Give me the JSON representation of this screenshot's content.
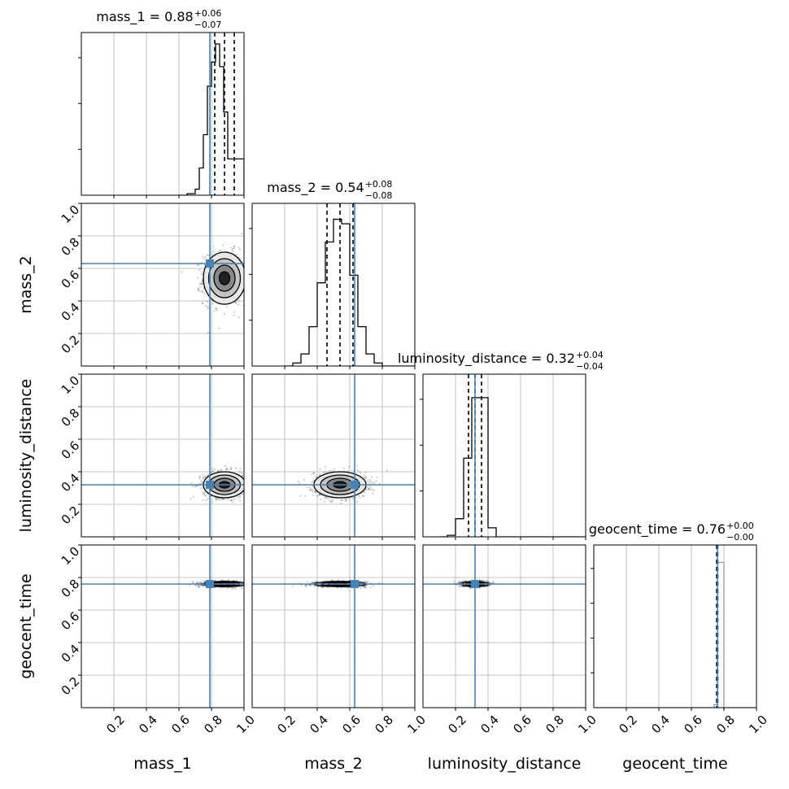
{
  "truth_color": "#4682b4",
  "chart_data": {
    "type": "corner",
    "parameters": [
      "mass_1",
      "mass_2",
      "luminosity_distance",
      "geocent_time"
    ],
    "axis_labels": [
      "mass_1",
      "mass_2",
      "luminosity_distance",
      "geocent_time"
    ],
    "range": [
      0,
      1
    ],
    "ticks": [
      0.2,
      0.4,
      0.6,
      0.8,
      1.0
    ],
    "tick_labels": [
      "0.2",
      "0.4",
      "0.6",
      "0.8",
      "1.0"
    ],
    "grid": true,
    "truths": [
      0.79,
      0.63,
      0.32,
      0.76
    ],
    "titles": [
      {
        "name": "mass_1",
        "eq": " = ",
        "value": "0.88",
        "plus": "+0.06",
        "minus": "−0.07"
      },
      {
        "name": "mass_2",
        "eq": " = ",
        "value": "0.54",
        "plus": "+0.08",
        "minus": "−0.08"
      },
      {
        "name": "luminosity_distance",
        "eq": " = ",
        "value": "0.32",
        "plus": "+0.04",
        "minus": "−0.04"
      },
      {
        "name": "geocent_time",
        "eq": " = ",
        "value": "0.76",
        "plus": "+0.00",
        "minus": "−0.00"
      }
    ],
    "quantiles": [
      [
        0.82,
        0.88,
        0.94
      ],
      [
        0.46,
        0.54,
        0.62
      ],
      [
        0.28,
        0.32,
        0.36
      ],
      [
        0.755,
        0.76,
        0.762
      ]
    ],
    "histograms": [
      {
        "edges": [
          0.6,
          0.65,
          0.7,
          0.725,
          0.75,
          0.775,
          0.8,
          0.825,
          0.85,
          0.875,
          0.9,
          0.925,
          0.95,
          0.975,
          1.0
        ],
        "counts": [
          0.0,
          0.01,
          0.04,
          0.18,
          0.4,
          0.72,
          0.88,
          1.0,
          0.85,
          0.55,
          0.24,
          0.24,
          0.24,
          0.24
        ]
      },
      {
        "edges": [
          0.2,
          0.25,
          0.3,
          0.35,
          0.4,
          0.45,
          0.5,
          0.55,
          0.6,
          0.65,
          0.7,
          0.75,
          0.8,
          0.85,
          1.0
        ],
        "counts": [
          0.0,
          0.02,
          0.08,
          0.26,
          0.55,
          0.82,
          0.97,
          0.94,
          0.6,
          0.26,
          0.08,
          0.02,
          0.0,
          0.0
        ]
      },
      {
        "edges": [
          0.1,
          0.15,
          0.2,
          0.25,
          0.3,
          0.35,
          0.4,
          0.45,
          0.5,
          1.0
        ],
        "counts": [
          0.0,
          0.01,
          0.12,
          0.52,
          0.92,
          0.92,
          0.06,
          0.0,
          0.0
        ]
      },
      {
        "edges": [
          0.0,
          0.74,
          0.76,
          0.8,
          1.0
        ],
        "counts": [
          0.0,
          0.02,
          0.97,
          0.0
        ]
      }
    ],
    "scatter_2d": [
      {
        "row": 1,
        "col": 0,
        "cx": 0.88,
        "cy": 0.54,
        "sx": 0.065,
        "sy": 0.08
      },
      {
        "row": 2,
        "col": 0,
        "cx": 0.88,
        "cy": 0.32,
        "sx": 0.065,
        "sy": 0.04
      },
      {
        "row": 2,
        "col": 1,
        "cx": 0.54,
        "cy": 0.32,
        "sx": 0.08,
        "sy": 0.04
      },
      {
        "row": 3,
        "col": 0,
        "cx": 0.88,
        "cy": 0.76,
        "sx": 0.065,
        "sy": 0.008
      },
      {
        "row": 3,
        "col": 1,
        "cx": 0.54,
        "cy": 0.76,
        "sx": 0.08,
        "sy": 0.008
      },
      {
        "row": 3,
        "col": 2,
        "cx": 0.32,
        "cy": 0.76,
        "sx": 0.04,
        "sy": 0.008
      }
    ]
  }
}
